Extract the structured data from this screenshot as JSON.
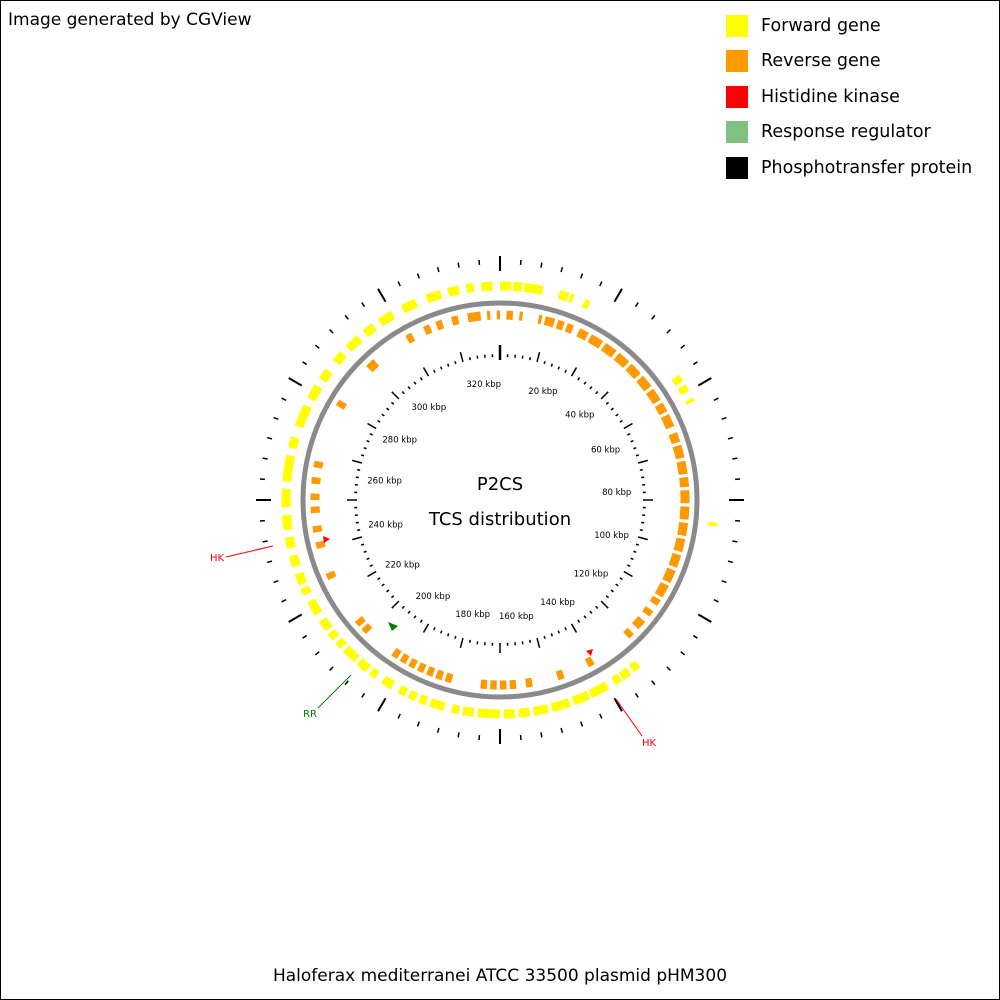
{
  "credit": "Image generated by CGView",
  "legend": [
    {
      "label": "Forward gene",
      "color": "#ffff00"
    },
    {
      "label": "Reverse gene",
      "color": "#ff9900"
    },
    {
      "label": "Histidine kinase",
      "color": "#ff0000"
    },
    {
      "label": "Response regulator",
      "color": "#80c080"
    },
    {
      "label": "Phosphotransfer protein",
      "color": "#000000"
    }
  ],
  "center": {
    "line1": "P2CS",
    "line2": "TCS distribution"
  },
  "footer": "Haloferax mediterranei ATCC 33500 plasmid pHM300",
  "plasmid": {
    "tick_labels": [
      "320 kbp",
      "20 kbp",
      "40 kbp",
      "60 kbp",
      "80 kbp",
      "100 kbp",
      "120 kbp",
      "140 kbp",
      "160 kbp",
      "180 kbp",
      "200 kbp",
      "220 kbp",
      "240 kbp",
      "260 kbp",
      "280 kbp",
      "300 kbp"
    ],
    "annotations": [
      {
        "label": "HK",
        "color": "#ff0000",
        "type": "histidine-kinase"
      },
      {
        "label": "RR",
        "color": "#008000",
        "type": "response-regulator"
      },
      {
        "label": "HK",
        "color": "#ff0000",
        "type": "histidine-kinase"
      }
    ]
  }
}
